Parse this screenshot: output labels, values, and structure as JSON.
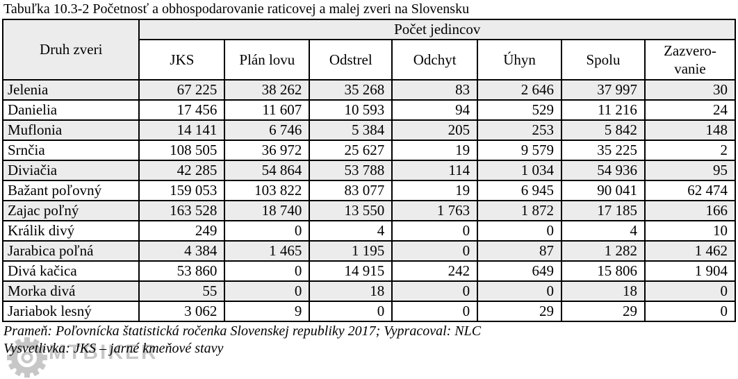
{
  "title": "Tabuľka 10.3-2 Početnosť a obhospodarovanie raticovej a malej zveri na Slovensku",
  "table": {
    "col1_header": "Druh zveri",
    "group_header": "Počet jedincov",
    "columns": [
      "JKS",
      "Plán lovu",
      "Odstrel",
      "Odchyt",
      "Úhyn",
      "Spolu",
      "Zazvero-\nvanie"
    ],
    "rows": [
      {
        "species": "Jelenia",
        "values": [
          "67 225",
          "38 262",
          "35 268",
          "83",
          "2 646",
          "37 997",
          "30"
        ]
      },
      {
        "species": "Danielia",
        "values": [
          "17 456",
          "11 607",
          "10 593",
          "94",
          "529",
          "11 216",
          "24"
        ]
      },
      {
        "species": "Muflonia",
        "values": [
          "14 141",
          "6 746",
          "5 384",
          "205",
          "253",
          "5 842",
          "148"
        ]
      },
      {
        "species": "Srnčia",
        "values": [
          "108 505",
          "36 972",
          "25 627",
          "19",
          "9 579",
          "35 225",
          "2"
        ]
      },
      {
        "species": "Diviačia",
        "values": [
          "42 285",
          "54 864",
          "53 788",
          "114",
          "1 034",
          "54 936",
          "95"
        ]
      },
      {
        "species": "Bažant poľovný",
        "values": [
          "159 053",
          "103 822",
          "83 077",
          "19",
          "6 945",
          "90 041",
          "62 474"
        ]
      },
      {
        "species": "Zajac poľný",
        "values": [
          "163 528",
          "18 740",
          "13 550",
          "1 763",
          "1 872",
          "17 185",
          "166"
        ]
      },
      {
        "species": "Králik divý",
        "values": [
          "249",
          "0",
          "4",
          "0",
          "0",
          "4",
          "10"
        ]
      },
      {
        "species": "Jarabica poľná",
        "values": [
          "4 384",
          "1 465",
          "1 195",
          "0",
          "87",
          "1 282",
          "1 462"
        ]
      },
      {
        "species": "Divá kačica",
        "values": [
          "53 860",
          "0",
          "14 915",
          "242",
          "649",
          "15 806",
          "1 904"
        ]
      },
      {
        "species": "Morka divá",
        "values": [
          "55",
          "0",
          "18",
          "0",
          "0",
          "18",
          "0"
        ]
      },
      {
        "species": "Jariabok lesný",
        "values": [
          "3 062",
          "9",
          "0",
          "0",
          "29",
          "29",
          "0"
        ]
      }
    ]
  },
  "footer": {
    "source": "Prameň: Poľovnícka štatistická ročenka Slovenskej republiky 2017; Vypracoval: NLC",
    "note": "Vysvetlivka: JKS – jarné kmeňové stavy"
  },
  "watermark": {
    "text": "MTBIKER",
    "color": "#9a9a9a"
  },
  "colors": {
    "shaded_row": "#ececec",
    "border": "#000000",
    "background": "#ffffff"
  }
}
